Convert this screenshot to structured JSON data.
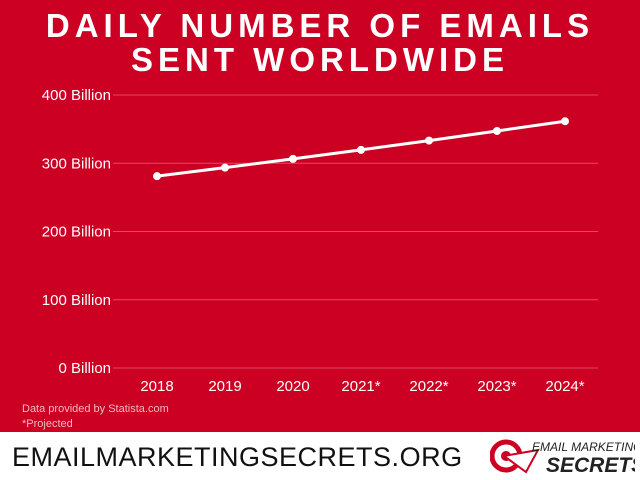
{
  "chart_data": {
    "type": "line",
    "title_lines": [
      "DAILY NUMBER OF EMAILS",
      "SENT WORLDWIDE"
    ],
    "categories": [
      "2018",
      "2019",
      "2020",
      "2021*",
      "2022*",
      "2023*",
      "2024*"
    ],
    "values": [
      281.1,
      293.6,
      306.4,
      319.6,
      333.2,
      347.3,
      361.6
    ],
    "unit": "Billion",
    "yticks": [
      "0 Billion",
      "100 Billion",
      "200 Billion",
      "300 Billion",
      "400 Billion"
    ],
    "ytick_values": [
      0,
      100,
      200,
      300,
      400
    ],
    "ylim": [
      0,
      400
    ],
    "grid": true,
    "colors": {
      "background": "#CC0022",
      "line": "#ffffff"
    }
  },
  "notes": {
    "source": "Data provided by Statista.com",
    "projected": "*Projected"
  },
  "footer": {
    "url": "EMAILMARKETINGSECRETS.ORG",
    "logo_line1": "EMAIL MARKETING",
    "logo_line2": "SECRETS"
  }
}
